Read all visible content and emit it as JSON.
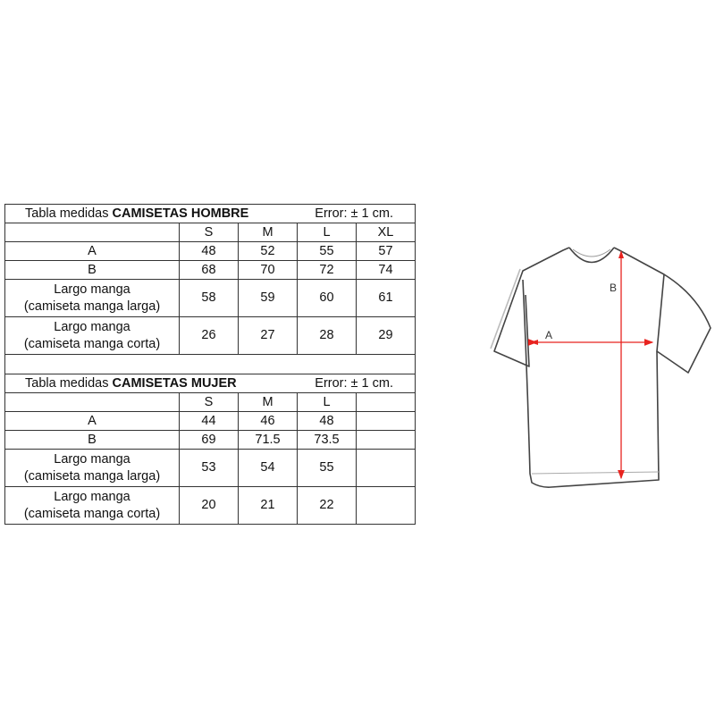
{
  "men": {
    "title_prefix": "Tabla medidas",
    "title_bold": "CAMISETAS HOMBRE",
    "error": "Error: ± 1 cm.",
    "sizes": [
      "S",
      "M",
      "L",
      "XL"
    ],
    "rows": [
      {
        "label": "A",
        "values": [
          "48",
          "52",
          "55",
          "57"
        ]
      },
      {
        "label": "B",
        "values": [
          "68",
          "70",
          "72",
          "74"
        ]
      },
      {
        "label": "Largo manga",
        "sublabel": "(camiseta manga larga)",
        "values": [
          "58",
          "59",
          "60",
          "61"
        ]
      },
      {
        "label": "Largo manga",
        "sublabel": "(camiseta manga corta)",
        "values": [
          "26",
          "27",
          "28",
          "29"
        ]
      }
    ]
  },
  "women": {
    "title_prefix": "Tabla medidas",
    "title_bold": "CAMISETAS MUJER",
    "error": "Error: ± 1 cm.",
    "sizes": [
      "S",
      "M",
      "L",
      ""
    ],
    "rows": [
      {
        "label": "A",
        "values": [
          "44",
          "46",
          "48",
          ""
        ]
      },
      {
        "label": "B",
        "values": [
          "69",
          "71.5",
          "73.5",
          ""
        ]
      },
      {
        "label": "Largo manga",
        "sublabel": "(camiseta manga larga)",
        "values": [
          "53",
          "54",
          "55",
          ""
        ]
      },
      {
        "label": "Largo manga",
        "sublabel": "(camiseta manga corta)",
        "values": [
          "20",
          "21",
          "22",
          ""
        ]
      }
    ]
  },
  "diagram": {
    "label_a": "A",
    "label_b": "B",
    "arrow_color": "#e8231f",
    "icon": "t-shirt-icon"
  }
}
